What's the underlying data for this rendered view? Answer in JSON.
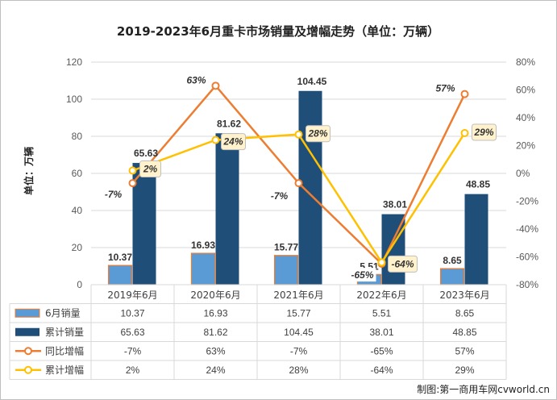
{
  "chart_data": {
    "type": "bar",
    "title": "2019-2023年6月重卡市场销量及增幅走势（单位：万辆）",
    "ylabel": "单位：万辆",
    "categories": [
      "2019年6月",
      "2020年6月",
      "2021年6月",
      "2022年6月",
      "2023年6月"
    ],
    "ylim": [
      0,
      120
    ],
    "y_ticks": [
      "0",
      "20",
      "40",
      "60",
      "80",
      "100",
      "120"
    ],
    "y2lim": [
      -80,
      80
    ],
    "y2_ticks": [
      "-80%",
      "-60%",
      "-40%",
      "-20%",
      "0%",
      "20%",
      "40%",
      "60%",
      "80%"
    ],
    "series": [
      {
        "name": "6月销量",
        "type": "bar",
        "axis": "left",
        "color": "#5b9bd5",
        "edge": "#ed7d31",
        "values": [
          10.37,
          16.93,
          15.77,
          5.51,
          8.65
        ],
        "labels": [
          "10.37",
          "16.93",
          "15.77",
          "5.51",
          "8.65"
        ]
      },
      {
        "name": "累计销量",
        "type": "bar",
        "axis": "left",
        "color": "#1f4e79",
        "values": [
          65.63,
          81.62,
          104.45,
          38.01,
          48.85
        ],
        "labels": [
          "65.63",
          "81.62",
          "104.45",
          "38.01",
          "48.85"
        ]
      },
      {
        "name": "同比增幅",
        "type": "line",
        "axis": "right",
        "color": "#ed7d31",
        "values": [
          -7,
          63,
          -7,
          -65,
          57
        ],
        "labels": [
          "-7%",
          "63%",
          "-7%",
          "-65%",
          "57%"
        ]
      },
      {
        "name": "累计增幅",
        "type": "line",
        "axis": "right",
        "color": "#ffc000",
        "values": [
          2,
          24,
          28,
          -64,
          29
        ],
        "labels": [
          "2%",
          "24%",
          "28%",
          "-64%",
          "29%"
        ]
      }
    ],
    "legend": "data-table-below"
  },
  "credit": "制图:第一商用车网cvworld.cn"
}
